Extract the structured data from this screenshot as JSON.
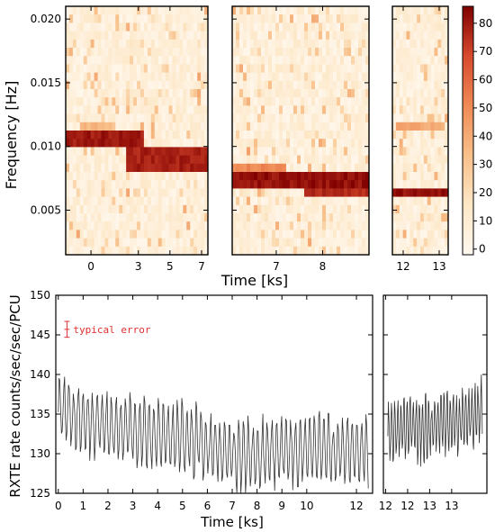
{
  "chart_data": [
    {
      "type": "heatmap",
      "title": "",
      "ylabel": "Frequency [Hz]",
      "xlabel": "Time [ks]",
      "ylim": [
        0.0015,
        0.021
      ],
      "y_ticks": [
        "0.005",
        "0.010",
        "0.015",
        "0.020"
      ],
      "y_tick_values": [
        0.005,
        0.01,
        0.015,
        0.02
      ],
      "colormap": [
        "#fff8ef",
        "#fde7c6",
        "#f8c08a",
        "#ef8a55",
        "#d84a2e",
        "#7f0000"
      ],
      "colorbar": {
        "range": [
          -2,
          86
        ],
        "ticks": [
          "0",
          "10",
          "20",
          "30",
          "40",
          "50",
          "60",
          "70",
          "80"
        ],
        "tick_values": [
          0,
          10,
          20,
          30,
          40,
          50,
          60,
          70,
          80
        ]
      },
      "panels": [
        {
          "xlim": [
            -1.6,
            7.4
          ],
          "x_ticks": [
            "0",
            "3",
            "5",
            "7"
          ],
          "x_tick_values": [
            0,
            3,
            5,
            7
          ],
          "bands": [
            {
              "from": 0.0098,
              "to": 0.0112,
              "x_from": -1.6,
              "x_to": 3.4,
              "level": 84
            },
            {
              "from": 0.0082,
              "to": 0.0102,
              "x_from": 2.2,
              "x_to": 7.4,
              "level": 82
            },
            {
              "from": 0.0113,
              "to": 0.012,
              "x_from": -0.6,
              "x_to": 1.3,
              "level": 40
            }
          ]
        },
        {
          "xlim": [
            6.05,
            9.0
          ],
          "x_ticks": [
            "7",
            "8"
          ],
          "x_tick_values": [
            7,
            8
          ],
          "bands": [
            {
              "from": 0.007,
              "to": 0.008,
              "x_from": 6.05,
              "x_to": 9.0,
              "level": 86
            },
            {
              "from": 0.0062,
              "to": 0.007,
              "x_from": 7.6,
              "x_to": 9.0,
              "level": 80
            },
            {
              "from": 0.008,
              "to": 0.0086,
              "x_from": 6.05,
              "x_to": 7.2,
              "level": 55
            }
          ]
        },
        {
          "xlim": [
            11.7,
            13.25
          ],
          "x_ticks": [
            "12",
            "13"
          ],
          "x_tick_values": [
            12,
            13
          ],
          "bands": [
            {
              "from": 0.006,
              "to": 0.0068,
              "x_from": 11.7,
              "x_to": 13.25,
              "level": 86
            },
            {
              "from": 0.0114,
              "to": 0.012,
              "x_from": 11.8,
              "x_to": 13.2,
              "level": 45
            }
          ]
        }
      ]
    },
    {
      "type": "line",
      "title": "",
      "ylabel": "RXTE rate counts/sec/sec/PCU",
      "xlabel": "Time [ks]",
      "ylim": [
        125,
        150
      ],
      "y_ticks": [
        "125",
        "130",
        "135",
        "140",
        "145",
        "150"
      ],
      "y_tick_values": [
        125,
        130,
        135,
        140,
        145,
        150
      ],
      "annotation": "typical error",
      "annotation_color": "#e03030",
      "typical_error": {
        "x": 0.35,
        "y": 145.7,
        "err": 1.0
      },
      "line_color": "#333333",
      "panels": [
        {
          "xlim": [
            -0.1,
            12.65
          ],
          "x_ticks": [
            "0",
            "1",
            "2",
            "3",
            "4",
            "5",
            "6",
            "7",
            "8",
            "9",
            "10",
            "12"
          ],
          "x_tick_values": [
            0,
            1,
            2,
            3,
            4,
            5,
            6,
            7,
            8,
            9,
            10,
            12
          ],
          "series_x": [
            0,
            0.5,
            1,
            1.5,
            2,
            2.5,
            3,
            3.5,
            4,
            4.5,
            5,
            5.5,
            6,
            6.5,
            7,
            7.5,
            8,
            8.5,
            9,
            9.5,
            10,
            10.5,
            11,
            11.5,
            12,
            12.5
          ],
          "series_base": [
            136,
            135,
            134.5,
            134,
            133.5,
            133,
            133,
            132.5,
            132.5,
            132,
            132,
            131.5,
            131,
            130.5,
            130,
            130,
            130,
            130,
            130.5,
            130.5,
            130.5,
            130.5,
            130.5,
            130.5,
            130.5,
            130
          ],
          "period": 0.19,
          "amplitude": 4.5
        },
        {
          "xlim": [
            11.45,
            13.8
          ],
          "x_ticks": [
            "12",
            "12",
            "13",
            "13"
          ],
          "x_tick_values": [
            11.5,
            12.0,
            12.5,
            13.0
          ],
          "series_x": [
            11.55,
            11.8,
            12.05,
            12.3,
            12.55,
            12.8,
            13.05,
            13.3,
            13.55,
            13.7
          ],
          "series_base": [
            132.5,
            133,
            133.5,
            133,
            133.5,
            134,
            134,
            134.5,
            135,
            135.5
          ],
          "period": 0.07,
          "amplitude": 4
        }
      ]
    }
  ]
}
